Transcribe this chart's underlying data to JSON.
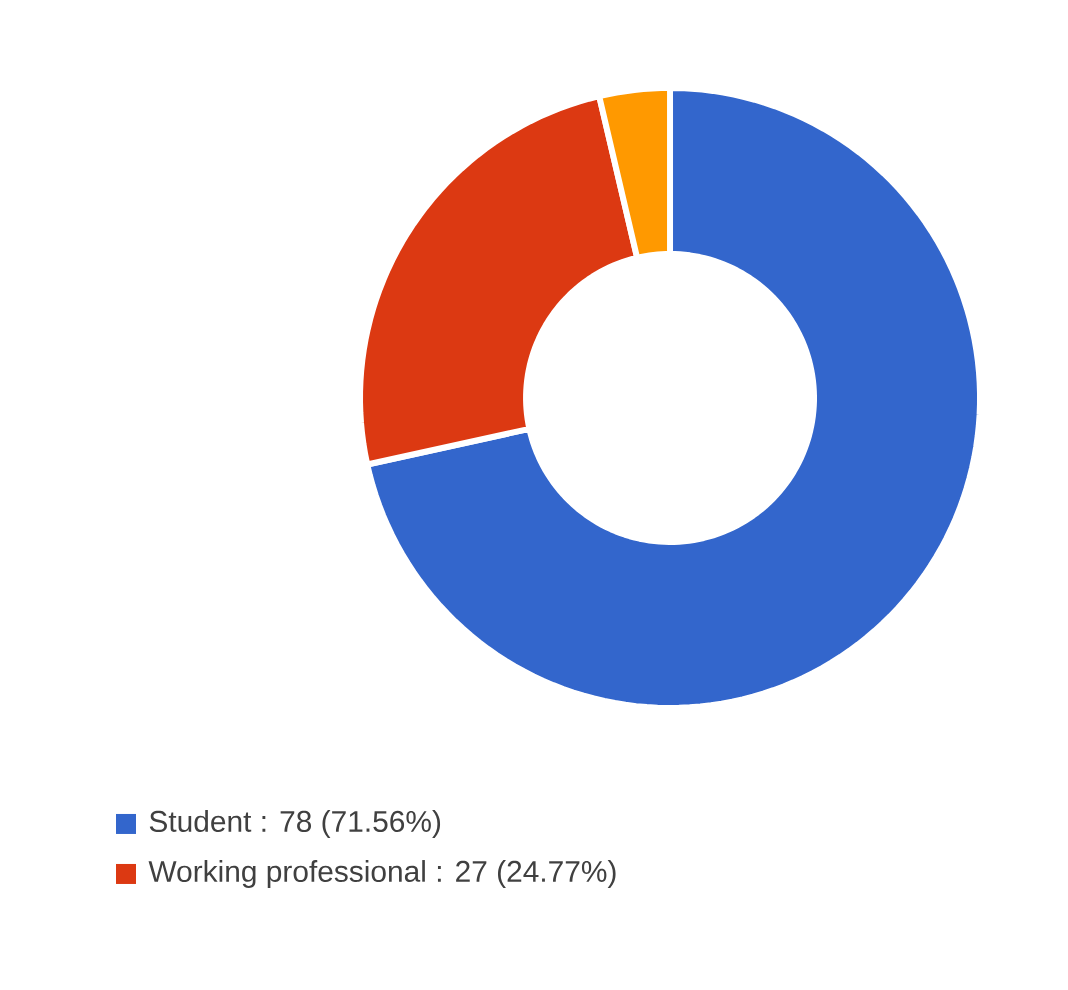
{
  "chart_data": {
    "type": "donut",
    "categories": [
      "Student",
      "Working professional",
      null
    ],
    "values": [
      78,
      27,
      4
    ],
    "value_labels": [
      ": 78 (71.56%)",
      ": 27 (24.77%)",
      null
    ],
    "colors": [
      "#3366cc",
      "#dc3912",
      "#ff9900"
    ],
    "legend": "bottom left"
  }
}
